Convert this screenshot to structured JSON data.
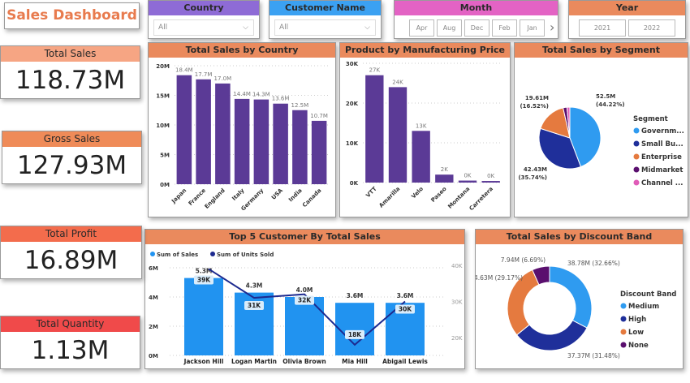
{
  "title": "Sales Dashboard",
  "slicers": {
    "country": {
      "label": "Country",
      "value": "All",
      "color": "#8e6bd6"
    },
    "customer": {
      "label": "Customer Name",
      "value": "All",
      "color": "#3ba1f2"
    },
    "month": {
      "label": "Month",
      "options": [
        "Apr",
        "Aug",
        "Dec",
        "Feb",
        "Jan"
      ],
      "color": "#e363c4"
    },
    "year": {
      "label": "Year",
      "options": [
        "2021",
        "2022"
      ],
      "color": "#ea8a5d"
    }
  },
  "kpis": [
    {
      "label": "Total Sales",
      "value": "118.73M",
      "color": "#f6a583"
    },
    {
      "label": "Gross Sales",
      "value": "127.93M",
      "color": "#ef8b58"
    },
    {
      "label": "Total Profit",
      "value": "16.89M",
      "color": "#f36c4c"
    },
    {
      "label": "Total Quantity",
      "value": "1.13M",
      "color": "#f04a4a"
    }
  ],
  "chart_data": [
    {
      "type": "bar",
      "title": "Total Sales by Country",
      "categories": [
        "Japan",
        "France",
        "England",
        "Italy",
        "Germany",
        "USA",
        "India",
        "Canada"
      ],
      "values": [
        18.4,
        17.7,
        17.0,
        14.4,
        14.3,
        13.6,
        12.5,
        10.7
      ],
      "labels": [
        "18.4M",
        "17.7M",
        "17.0M",
        "14.4M",
        "14.3M",
        "13.6M",
        "12.5M",
        "10.7M"
      ],
      "unit": "M",
      "ylim": [
        0,
        20
      ],
      "yticks": [
        "0M",
        "5M",
        "10M",
        "15M",
        "20M"
      ],
      "color": "#5b3a96",
      "grid": true
    },
    {
      "type": "bar",
      "title": "Product by Manufacturing Price",
      "categories": [
        "VTT",
        "Amarilla",
        "Velo",
        "Paseo",
        "Montana",
        "Carretera"
      ],
      "values": [
        27,
        24,
        13,
        2,
        0.5,
        0.4
      ],
      "labels": [
        "27K",
        "24K",
        "13K",
        "2K",
        "0K",
        "0K"
      ],
      "unit": "K",
      "ylim": [
        0,
        30
      ],
      "yticks": [
        "0K",
        "10K",
        "20K",
        "30K"
      ],
      "color": "#5b3a96",
      "grid": true
    },
    {
      "type": "pie",
      "title": "Total Sales by Segment",
      "legend_title": "Segment",
      "legend_placement": "right",
      "slices": [
        {
          "name": "Governm...",
          "value": 52.5,
          "label": "52.5M",
          "pct": "(44.22%)",
          "color": "#2f9bf0"
        },
        {
          "name": "Small Bu...",
          "value": 42.43,
          "label": "42.43M",
          "pct": "(35.74%)",
          "color": "#1f2f9a"
        },
        {
          "name": "Enterprise",
          "value": 19.61,
          "label": "19.61M",
          "pct": "(16.52%)",
          "color": "#e57a3f"
        },
        {
          "name": "Midmarket",
          "value": 2.38,
          "color": "#5a0f6e"
        },
        {
          "name": "Channel ...",
          "value": 1.81,
          "color": "#e05cb8"
        }
      ]
    },
    {
      "type": "bar+line",
      "title": "Top 5 Customer By Total Sales",
      "legend_placement": "top-left",
      "categories": [
        "Jackson Hill",
        "Logan Martin",
        "Olivia Brown",
        "Mia Hill",
        "Abigail Lewis"
      ],
      "series": [
        {
          "name": "Sum of Sales",
          "values": [
            5.3,
            4.3,
            4.0,
            3.6,
            3.6
          ],
          "labels": [
            "5.3M",
            "4.3M",
            "4.0M",
            "3.6M",
            "3.6M"
          ],
          "color": "#2193f0"
        },
        {
          "name": "Sum of Units Sold",
          "values": [
            39,
            31,
            32,
            18,
            30
          ],
          "labels": [
            "39K",
            "31K",
            "32K",
            "18K",
            "30K"
          ],
          "color": "#1d2a8f"
        }
      ],
      "ylim": [
        0,
        6
      ],
      "yticks": [
        "0M",
        "2M",
        "4M",
        "6M"
      ],
      "y2lim": [
        15,
        40
      ],
      "y2ticks": [
        "20K",
        "30K",
        "40K"
      ],
      "grid": true
    },
    {
      "type": "donut",
      "title": "Total Sales by Discount Band",
      "legend_title": "Discount Band",
      "legend_placement": "right",
      "slices": [
        {
          "name": "Medium",
          "value": 38.78,
          "label": "38.78M (32.66%)",
          "color": "#2f9bf0"
        },
        {
          "name": "High",
          "value": 37.37,
          "label": "37.37M (31.48%)",
          "color": "#1f2f9a"
        },
        {
          "name": "Low",
          "value": 34.63,
          "label": "34.63M (29.17%)",
          "color": "#e57a3f"
        },
        {
          "name": "None",
          "value": 7.94,
          "label": "7.94M (6.69%)",
          "color": "#5a0f6e"
        }
      ]
    }
  ]
}
